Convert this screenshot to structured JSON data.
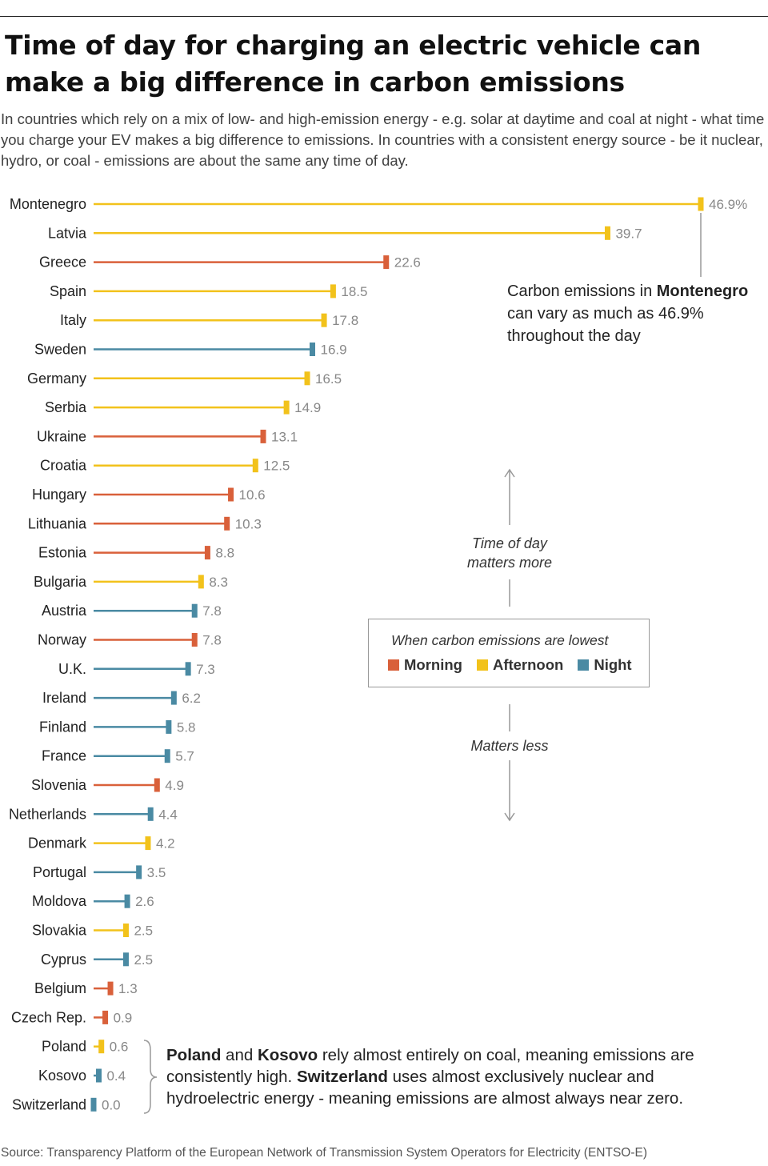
{
  "title": "Time of day for charging an electric vehicle can make a big difference in carbon emissions",
  "subtitle": "In countries which rely on a mix of low- and high-emission energy - e.g. solar at daytime and coal at night - what time you charge your EV makes a big difference to emissions. In countries with a consistent energy source - be it nuclear, hydro, or coal - emissions are about the same any time of day.",
  "colors": {
    "Morning": "#d9603a",
    "Afternoon": "#f2c21b",
    "Night": "#4a8aa3",
    "label": "#888888"
  },
  "chart_data": {
    "type": "bar",
    "orientation": "horizontal",
    "value_unit": "%",
    "categories": [
      "Montenegro",
      "Latvia",
      "Greece",
      "Spain",
      "Italy",
      "Sweden",
      "Germany",
      "Serbia",
      "Ukraine",
      "Croatia",
      "Hungary",
      "Lithuania",
      "Estonia",
      "Bulgaria",
      "Austria",
      "Norway",
      "U.K.",
      "Ireland",
      "Finland",
      "France",
      "Slovenia",
      "Netherlands",
      "Denmark",
      "Portugal",
      "Moldova",
      "Slovakia",
      "Cyprus",
      "Belgium",
      "Czech Rep.",
      "Poland",
      "Kosovo",
      "Switzerland"
    ],
    "values": [
      46.9,
      39.7,
      22.6,
      18.5,
      17.8,
      16.9,
      16.5,
      14.9,
      13.1,
      12.5,
      10.6,
      10.3,
      8.8,
      8.3,
      7.8,
      7.8,
      7.3,
      6.2,
      5.8,
      5.7,
      4.9,
      4.4,
      4.2,
      3.5,
      2.6,
      2.5,
      2.5,
      1.3,
      0.9,
      0.6,
      0.4,
      0.0
    ],
    "value_labels": [
      "46.9%",
      "39.7",
      "22.6",
      "18.5",
      "17.8",
      "16.9",
      "16.5",
      "14.9",
      "13.1",
      "12.5",
      "10.6",
      "10.3",
      "8.8",
      "8.3",
      "7.8",
      "7.8",
      "7.3",
      "6.2",
      "5.8",
      "5.7",
      "4.9",
      "4.4",
      "4.2",
      "3.5",
      "2.6",
      "2.5",
      "2.5",
      "1.3",
      "0.9",
      "0.6",
      "0.4",
      "0.0"
    ],
    "lowest_time": [
      "Afternoon",
      "Afternoon",
      "Morning",
      "Afternoon",
      "Afternoon",
      "Night",
      "Afternoon",
      "Afternoon",
      "Morning",
      "Afternoon",
      "Morning",
      "Morning",
      "Morning",
      "Afternoon",
      "Night",
      "Morning",
      "Night",
      "Night",
      "Night",
      "Night",
      "Morning",
      "Night",
      "Afternoon",
      "Night",
      "Night",
      "Afternoon",
      "Night",
      "Morning",
      "Morning",
      "Afternoon",
      "Night",
      "Night"
    ],
    "xlim": [
      0,
      46.9
    ],
    "legend": {
      "title": "When carbon emissions are lowest",
      "entries": [
        "Morning",
        "Afternoon",
        "Night"
      ],
      "placement": "center-right"
    }
  },
  "annotations": {
    "montenegro_pre": "Carbon emissions in ",
    "montenegro_bold": "Montenegro",
    "montenegro_post": "can vary as much as 46.9% throughout the day",
    "more_line1": "Time of day",
    "more_line2": "matters more",
    "less": "Matters less",
    "bottom_b1": "Poland",
    "bottom_t1": " and ",
    "bottom_b2": "Kosovo",
    "bottom_t2": " rely almost entirely on coal, meaning emissions are consistently high. ",
    "bottom_b3": "Switzerland",
    "bottom_t3": " uses almost exclusively nuclear and hydroelectric energy - meaning emissions are almost always near zero."
  },
  "source": "Source: Transparency Platform of the European Network of Transmission System Operators for Electricity (ENTSO-E)"
}
